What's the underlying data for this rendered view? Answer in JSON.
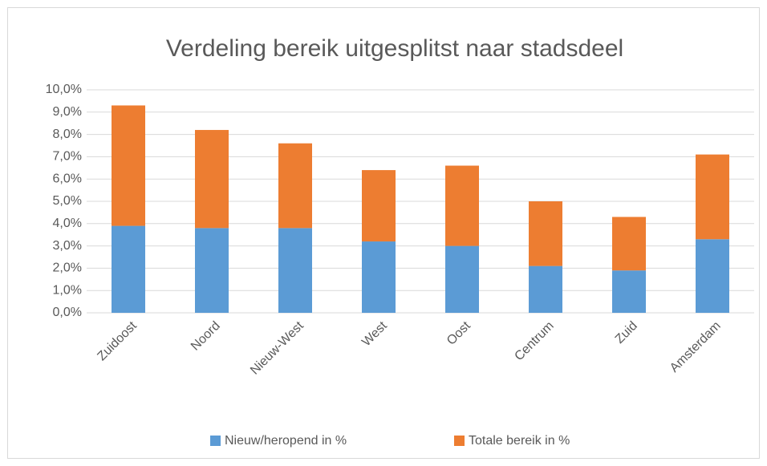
{
  "chart_data": {
    "type": "stacked_bar",
    "title": "Verdeling bereik uitgesplitst naar stadsdeel",
    "categories": [
      "Zuidoost",
      "Noord",
      "Nieuw-West",
      "West",
      "Oost",
      "Centrum",
      "Zuid",
      "Amsterdam"
    ],
    "series": [
      {
        "name": "Nieuw/heropend in %",
        "color": "#5b9bd5",
        "values": [
          3.9,
          3.8,
          3.8,
          3.2,
          3.0,
          2.1,
          1.9,
          3.3
        ]
      },
      {
        "name": "Totale bereik in %",
        "color": "#ed7d31",
        "values": [
          5.4,
          4.4,
          3.8,
          3.2,
          3.6,
          2.9,
          2.4,
          3.8
        ]
      }
    ],
    "ylim": [
      0,
      10
    ],
    "yticks": [
      {
        "value": 0,
        "label": "0,0%"
      },
      {
        "value": 1,
        "label": "1,0%"
      },
      {
        "value": 2,
        "label": "2,0%"
      },
      {
        "value": 3,
        "label": "3,0%"
      },
      {
        "value": 4,
        "label": "4,0%"
      },
      {
        "value": 5,
        "label": "5,0%"
      },
      {
        "value": 6,
        "label": "6,0%"
      },
      {
        "value": 7,
        "label": "7,0%"
      },
      {
        "value": 8,
        "label": "8,0%"
      },
      {
        "value": 9,
        "label": "9,0%"
      },
      {
        "value": 10,
        "label": "10,0%"
      }
    ],
    "grid": true,
    "legend": "bottom"
  }
}
